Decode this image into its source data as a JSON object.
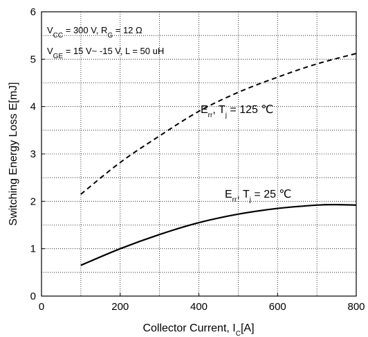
{
  "chart_data": {
    "type": "line",
    "xlabel": "Collector Current, I_C[A]",
    "ylabel": "Switching Energy Loss E[mJ]",
    "xlim": [
      0,
      800
    ],
    "ylim": [
      0,
      6
    ],
    "xticks": [
      0,
      200,
      400,
      600,
      800
    ],
    "yticks": [
      0,
      1,
      2,
      3,
      4,
      5,
      6
    ],
    "grid": "dotted",
    "annotations": [
      "V_CC = 300 V, R_G = 12 Ω",
      "V_GE = 15 V~ -15 V, L = 50 uH"
    ],
    "series": [
      {
        "name": "E_rr, T_j = 125 ℃",
        "style": "dashed",
        "x": [
          100,
          200,
          300,
          400,
          500,
          600,
          700,
          800
        ],
        "y": [
          2.15,
          2.82,
          3.38,
          3.9,
          4.3,
          4.62,
          4.9,
          5.12
        ]
      },
      {
        "name": "E_rr, T_j = 25 ℃",
        "style": "solid",
        "x": [
          100,
          200,
          300,
          400,
          500,
          600,
          700,
          750,
          800
        ],
        "y": [
          0.65,
          1.0,
          1.3,
          1.55,
          1.73,
          1.85,
          1.92,
          1.93,
          1.92
        ]
      }
    ]
  }
}
